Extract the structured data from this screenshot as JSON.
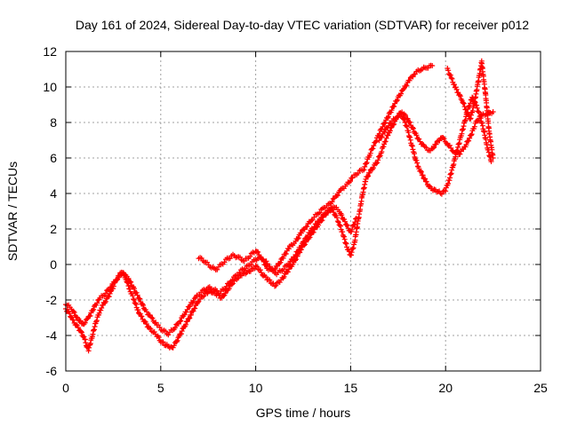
{
  "chart_data": {
    "type": "scatter",
    "title": "Day 161 of 2024, Sidereal Day-to-day VTEC variation (SDTVAR) for receiver p012",
    "xlabel": "GPS time / hours",
    "ylabel": "SDTVAR / TECUs",
    "xlim": [
      0,
      25
    ],
    "ylim": [
      -6,
      12
    ],
    "xticks": [
      0,
      5,
      10,
      15,
      20,
      25
    ],
    "yticks": [
      -6,
      -4,
      -2,
      0,
      2,
      4,
      6,
      8,
      10,
      12
    ],
    "grid": true,
    "marker": "+",
    "color": "#ff0000",
    "series": [
      {
        "x": [
          0,
          0.2,
          0.4,
          0.6,
          0.8,
          1.0,
          1.1,
          1.2,
          1.4,
          1.6,
          1.8,
          2.0,
          2.2,
          2.4,
          2.6,
          2.8,
          3.0,
          3.2,
          3.4,
          3.6,
          3.8,
          4.0,
          4.2,
          4.4,
          4.6,
          4.8,
          5.0,
          5.2,
          5.4,
          5.6,
          5.8,
          6.0,
          6.2,
          6.4,
          6.6,
          6.8,
          7.0,
          7.2,
          7.4,
          7.6,
          7.8,
          8.0,
          8.2,
          8.4,
          8.6,
          8.8,
          9.0,
          9.2,
          9.4,
          9.6,
          9.8,
          10.0,
          10.2,
          10.4,
          10.6,
          10.8,
          11.0,
          11.2,
          11.4,
          11.6,
          11.8,
          12.0,
          12.2,
          12.4,
          12.6,
          12.8,
          13.0,
          13.2,
          13.4,
          13.6,
          13.8,
          14.0,
          14.2,
          14.4,
          14.6,
          14.8,
          15.0,
          15.2,
          15.4,
          15.6,
          15.8,
          16.0,
          16.2,
          16.4,
          16.6,
          16.8,
          17.0,
          17.2,
          17.4,
          17.6,
          17.8,
          18.0,
          18.2,
          18.4,
          18.6,
          18.8,
          19.0,
          19.2,
          19.4,
          19.6,
          19.8,
          20.0,
          20.2,
          20.4,
          20.6,
          20.8,
          21.0,
          21.2,
          21.4,
          21.6,
          21.8,
          22.0,
          22.2,
          22.4
        ],
        "y": [
          -2.5,
          -2.8,
          -3.2,
          -3.5,
          -3.8,
          -4.2,
          -4.6,
          -4.8,
          -4.0,
          -3.2,
          -2.6,
          -2.2,
          -1.9,
          -1.5,
          -1.0,
          -0.6,
          -0.4,
          -0.9,
          -1.5,
          -2.0,
          -2.6,
          -3.0,
          -3.3,
          -3.6,
          -3.8,
          -4.0,
          -4.3,
          -4.5,
          -4.6,
          -4.7,
          -4.4,
          -4.0,
          -3.6,
          -3.2,
          -2.8,
          -2.4,
          -2.0,
          -1.8,
          -1.6,
          -1.5,
          -1.6,
          -1.7,
          -1.9,
          -1.6,
          -1.3,
          -1.0,
          -0.8,
          -0.6,
          -0.5,
          -0.4,
          -0.3,
          -0.1,
          -0.3,
          -0.6,
          -0.8,
          -1.0,
          -1.2,
          -1.0,
          -0.8,
          -0.5,
          -0.2,
          0.1,
          0.5,
          0.9,
          1.2,
          1.5,
          1.8,
          2.1,
          2.4,
          2.7,
          3.0,
          3.1,
          2.8,
          2.3,
          1.7,
          1.0,
          0.5,
          1.2,
          2.5,
          3.8,
          4.8,
          5.2,
          5.5,
          5.8,
          6.3,
          6.9,
          7.4,
          7.8,
          8.2,
          8.5,
          8.2,
          7.6,
          6.8,
          6.0,
          5.4,
          5.0,
          4.6,
          4.3,
          4.2,
          4.1,
          4.0,
          4.2,
          4.8,
          5.6,
          6.4,
          7.2,
          8.0,
          8.8,
          9.4,
          9.0,
          8.4,
          7.6,
          6.6,
          5.8
        ]
      },
      {
        "x": [
          0,
          0.3,
          0.6,
          0.9,
          1.2,
          1.5,
          1.8,
          2.1,
          2.4,
          2.7,
          3.0,
          3.3,
          3.6,
          3.9,
          4.2,
          4.5,
          4.8,
          5.1,
          5.4,
          5.7,
          6.0,
          6.3,
          6.6,
          6.9,
          7.2,
          7.5,
          7.8,
          8.1,
          8.4,
          8.7,
          9.0,
          9.3,
          9.6,
          9.9,
          10.2,
          10.5,
          10.8,
          11.1,
          11.4,
          11.7,
          12.0,
          12.3,
          12.6,
          12.9,
          13.2,
          13.5,
          13.8,
          14.1,
          14.4,
          14.7,
          15.0,
          15.3
        ],
        "y": [
          -2.2,
          -2.5,
          -3.0,
          -3.4,
          -3.0,
          -2.4,
          -1.9,
          -1.6,
          -1.2,
          -0.8,
          -0.5,
          -0.8,
          -1.4,
          -2.0,
          -2.6,
          -3.0,
          -3.4,
          -3.7,
          -3.9,
          -3.6,
          -3.2,
          -2.7,
          -2.2,
          -1.8,
          -1.5,
          -1.3,
          -1.4,
          -1.6,
          -1.3,
          -0.9,
          -0.6,
          -0.3,
          -0.1,
          0.2,
          0.4,
          0.2,
          -0.2,
          -0.5,
          -0.3,
          0.0,
          0.4,
          0.9,
          1.4,
          1.9,
          2.3,
          2.7,
          3.0,
          3.3,
          3.0,
          2.4,
          1.8,
          2.6
        ]
      },
      {
        "x": [
          7.0,
          7.3,
          7.6,
          7.9,
          8.2,
          8.5,
          8.8,
          9.1,
          9.4,
          9.7,
          10.0,
          10.3,
          10.6,
          10.9,
          11.2,
          11.5,
          11.8,
          12.1,
          12.4,
          12.7,
          13.0,
          13.3,
          13.6,
          13.9,
          14.2,
          14.5,
          14.8,
          15.1,
          15.4,
          15.7,
          16.0,
          16.3,
          16.6,
          16.9,
          17.2,
          17.5,
          17.8,
          18.1,
          18.4,
          18.7,
          19.0,
          19.3
        ],
        "y": [
          0.4,
          0.2,
          -0.1,
          -0.3,
          0.0,
          0.3,
          0.5,
          0.4,
          0.2,
          0.5,
          0.8,
          0.4,
          -0.2,
          -0.4,
          0.0,
          0.5,
          1.0,
          1.3,
          1.8,
          2.2,
          2.6,
          2.9,
          3.2,
          3.4,
          3.8,
          4.2,
          4.5,
          4.9,
          5.2,
          5.4,
          6.2,
          6.9,
          7.6,
          8.2,
          8.8,
          9.4,
          9.9,
          10.4,
          10.8,
          11.0,
          11.1,
          11.2
        ]
      },
      {
        "x": [
          16.5,
          16.8,
          17.1,
          17.4,
          17.7,
          18.0,
          18.3,
          18.6,
          18.9,
          19.2,
          19.5,
          19.8,
          20.1,
          20.4,
          20.7,
          21.0,
          21.3,
          21.6,
          21.9,
          22.2,
          22.5
        ],
        "y": [
          7.0,
          7.5,
          8.0,
          8.3,
          8.6,
          8.2,
          7.6,
          7.0,
          6.6,
          6.4,
          6.8,
          7.2,
          6.8,
          6.4,
          6.2,
          6.6,
          7.2,
          8.0,
          8.4,
          8.5,
          8.6
        ]
      },
      {
        "x": [
          20.1,
          20.3,
          20.5,
          20.7,
          20.9,
          21.1,
          21.3,
          21.5,
          21.7,
          21.9,
          22.1,
          22.3,
          22.5
        ],
        "y": [
          11.0,
          10.5,
          10.0,
          9.6,
          9.2,
          8.6,
          8.2,
          9.0,
          10.2,
          11.4,
          9.6,
          7.4,
          6.0
        ]
      }
    ]
  }
}
